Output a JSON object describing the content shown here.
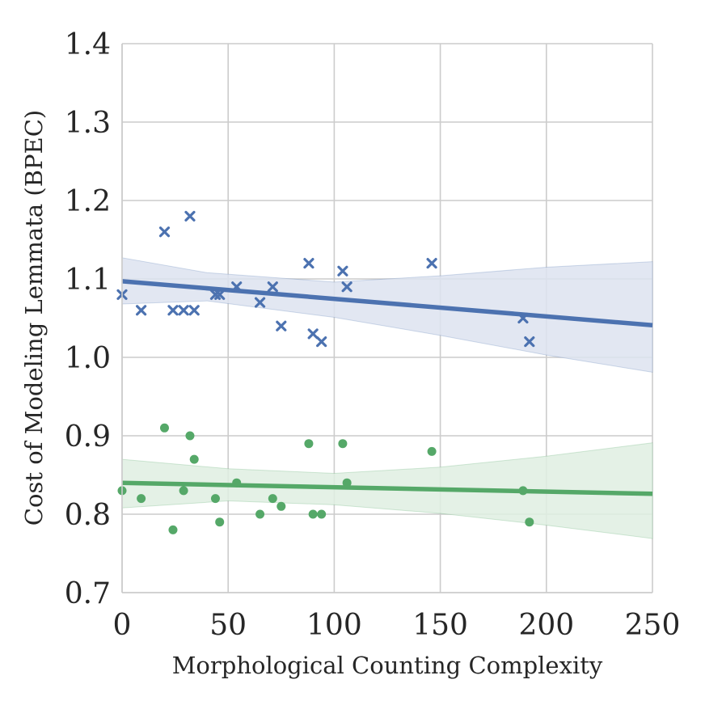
{
  "chart_data": {
    "type": "scatter",
    "title": "",
    "xlabel": "Morphological Counting Complexity",
    "ylabel": "Cost of Modeling Lemmata (BPEC)",
    "xlim": [
      0,
      250
    ],
    "ylim": [
      0.7,
      1.4
    ],
    "x_ticks": [
      0,
      50,
      100,
      150,
      200,
      250
    ],
    "y_ticks": [
      0.7,
      0.8,
      0.9,
      1.0,
      1.1,
      1.2,
      1.3,
      1.4
    ],
    "x_tick_labels": [
      "0",
      "50",
      "100",
      "150",
      "200",
      "250"
    ],
    "y_tick_labels": [
      "0.7",
      "0.8",
      "0.9",
      "1.0",
      "1.1",
      "1.2",
      "1.3",
      "1.4"
    ],
    "grid": true,
    "series": [
      {
        "name": "blue",
        "marker": "x",
        "color": "#4c72b0",
        "band_color": "#dde3f0",
        "points": [
          [
            0,
            1.08
          ],
          [
            9,
            1.06
          ],
          [
            20,
            1.16
          ],
          [
            24,
            1.06
          ],
          [
            29,
            1.06
          ],
          [
            32,
            1.18
          ],
          [
            34,
            1.06
          ],
          [
            44,
            1.08
          ],
          [
            46,
            1.08
          ],
          [
            54,
            1.09
          ],
          [
            65,
            1.07
          ],
          [
            71,
            1.09
          ],
          [
            75,
            1.04
          ],
          [
            88,
            1.12
          ],
          [
            90,
            1.03
          ],
          [
            94,
            1.02
          ],
          [
            104,
            1.11
          ],
          [
            106,
            1.09
          ],
          [
            146,
            1.12
          ],
          [
            189,
            1.05
          ],
          [
            192,
            1.02
          ]
        ],
        "fit": [
          [
            0,
            1.097
          ],
          [
            250,
            1.041
          ]
        ],
        "ci_upper": [
          [
            0,
            1.127
          ],
          [
            40,
            1.108
          ],
          [
            100,
            1.096
          ],
          [
            150,
            1.104
          ],
          [
            200,
            1.115
          ],
          [
            250,
            1.122
          ]
        ],
        "ci_lower": [
          [
            0,
            1.068
          ],
          [
            40,
            1.072
          ],
          [
            100,
            1.051
          ],
          [
            150,
            1.028
          ],
          [
            200,
            1.003
          ],
          [
            250,
            0.981
          ]
        ]
      },
      {
        "name": "green",
        "marker": "o",
        "color": "#55a868",
        "band_color": "#dfeee2",
        "points": [
          [
            0,
            0.83
          ],
          [
            9,
            0.82
          ],
          [
            20,
            0.91
          ],
          [
            24,
            0.78
          ],
          [
            29,
            0.83
          ],
          [
            32,
            0.9
          ],
          [
            34,
            0.87
          ],
          [
            44,
            0.82
          ],
          [
            46,
            0.79
          ],
          [
            54,
            0.84
          ],
          [
            65,
            0.8
          ],
          [
            71,
            0.82
          ],
          [
            75,
            0.81
          ],
          [
            88,
            0.89
          ],
          [
            90,
            0.8
          ],
          [
            94,
            0.8
          ],
          [
            104,
            0.89
          ],
          [
            106,
            0.84
          ],
          [
            146,
            0.88
          ],
          [
            189,
            0.83
          ],
          [
            192,
            0.79
          ]
        ],
        "fit": [
          [
            0,
            0.84
          ],
          [
            250,
            0.826
          ]
        ],
        "ci_upper": [
          [
            0,
            0.87
          ],
          [
            50,
            0.858
          ],
          [
            100,
            0.852
          ],
          [
            150,
            0.86
          ],
          [
            200,
            0.874
          ],
          [
            250,
            0.891
          ]
        ],
        "ci_lower": [
          [
            0,
            0.808
          ],
          [
            50,
            0.817
          ],
          [
            100,
            0.812
          ],
          [
            150,
            0.801
          ],
          [
            200,
            0.786
          ],
          [
            250,
            0.769
          ]
        ]
      }
    ]
  }
}
